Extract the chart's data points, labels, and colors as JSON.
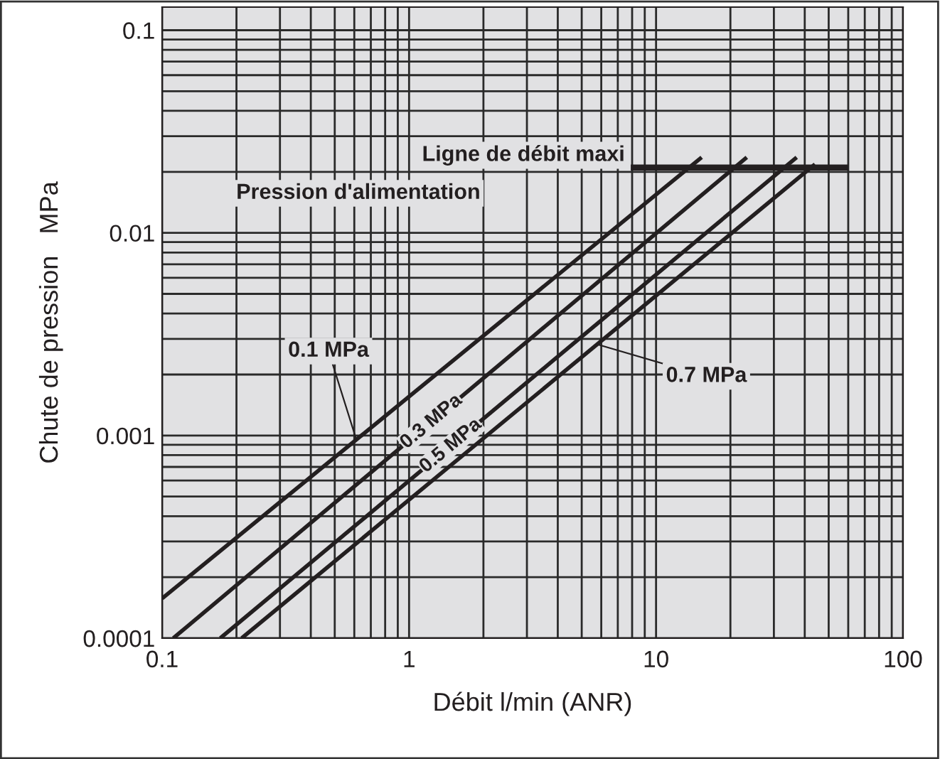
{
  "chart_data": {
    "type": "line",
    "xlabel": "Débit l/min (ANR)",
    "ylabel": "Chute de pression   MPa",
    "log": "xy",
    "xlim": [
      0.1,
      100
    ],
    "ylim": [
      0.0001,
      0.13
    ],
    "xticks": [
      0.1,
      1,
      10,
      100
    ],
    "yticks": [
      0.0001,
      0.001,
      0.01,
      0.1
    ],
    "grid": true,
    "legend": false,
    "marker": "none",
    "line_style": "solid",
    "legend_title": "Pression d'alimentation",
    "series": [
      {
        "name": "0.1 MPa",
        "color": "#231f20",
        "x": [
          0.1,
          15.3
        ],
        "values": [
          0.000157,
          0.0236
        ]
      },
      {
        "name": "0.3 MPa",
        "color": "#231f20",
        "x": [
          0.111,
          23.3
        ],
        "values": [
          0.0001,
          0.0236
        ]
      },
      {
        "name": "0.5 MPa",
        "color": "#231f20",
        "x": [
          0.172,
          37.1
        ],
        "values": [
          0.0001,
          0.0236
        ]
      },
      {
        "name": "0.7 MPa",
        "color": "#231f20",
        "x": [
          0.21,
          44
        ],
        "values": [
          0.0001,
          0.0218
        ]
      },
      {
        "name": "Ligne de débit maxi",
        "color": "#231f20",
        "x": [
          7.9,
          60
        ],
        "values": [
          0.021,
          0.021
        ]
      }
    ]
  }
}
